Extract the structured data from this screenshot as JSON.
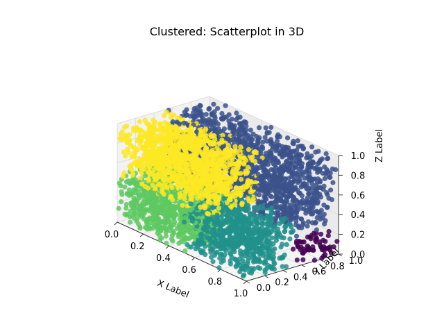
{
  "chart_data": {
    "type": "scatter",
    "projection": "3d",
    "title": "Clustered: Scatterplot in 3D",
    "xlabel": "X Label",
    "ylabel": "Y Label",
    "zlabel": "Z Label",
    "xlim": [
      0,
      1
    ],
    "ylim": [
      0,
      1
    ],
    "zlim": [
      0,
      1
    ],
    "xticks": [
      "0.0",
      "0.2",
      "0.4",
      "0.6",
      "0.8",
      "1.0"
    ],
    "yticks": [
      "0.0",
      "0.2",
      "0.4",
      "0.6",
      "0.8",
      "1.0"
    ],
    "zticks": [
      "0.0",
      "0.2",
      "0.4",
      "0.6",
      "0.8",
      "1.0"
    ],
    "grid": true,
    "clusters": [
      {
        "id": 0,
        "color": "#440154",
        "x": [
          0.95,
          1.0
        ],
        "y": [
          0.55,
          1.0
        ],
        "z": [
          0.0,
          0.25
        ]
      },
      {
        "id": 1,
        "color": "#3b528b",
        "x": [
          0.0,
          1.0
        ],
        "y": [
          0.5,
          1.0
        ],
        "z": [
          0.3,
          1.0
        ]
      },
      {
        "id": 2,
        "color": "#21918c",
        "x": [
          0.5,
          1.0
        ],
        "y": [
          0.0,
          0.55
        ],
        "z": [
          0.0,
          0.5
        ]
      },
      {
        "id": 3,
        "color": "#5ec962",
        "x": [
          0.0,
          0.55
        ],
        "y": [
          0.0,
          0.5
        ],
        "z": [
          0.0,
          0.5
        ]
      },
      {
        "id": 4,
        "color": "#fde725",
        "x": [
          0.0,
          0.7
        ],
        "y": [
          0.0,
          0.6
        ],
        "z": [
          0.45,
          1.0
        ]
      }
    ]
  }
}
